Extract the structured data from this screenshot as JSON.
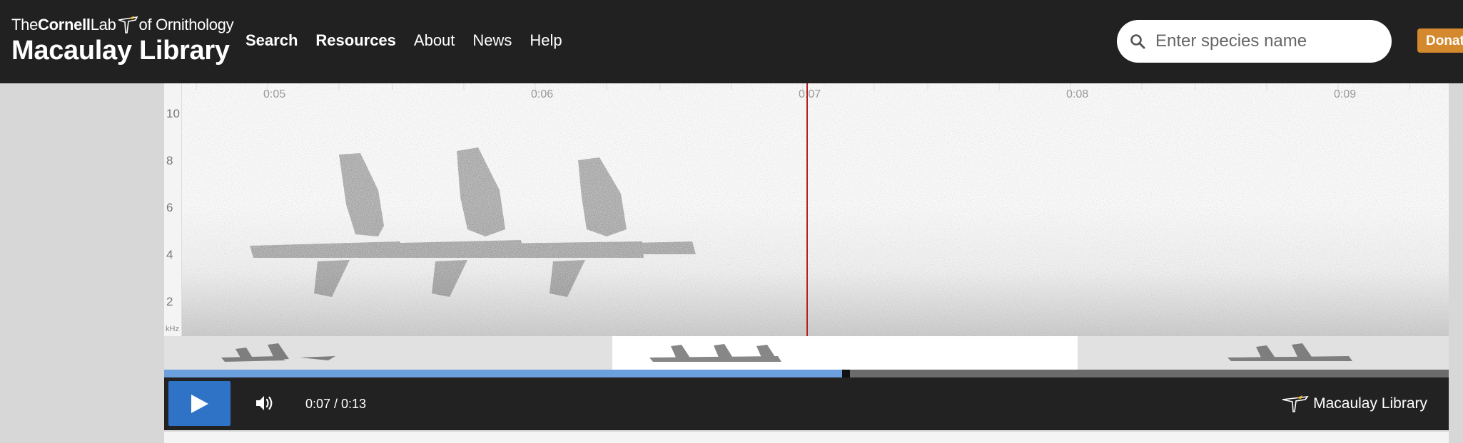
{
  "header": {
    "logo_prefix": "The",
    "logo_cornell": "Cornell",
    "logo_lab": "Lab",
    "logo_suffix": "of Ornithology",
    "logo_main": "Macaulay Library"
  },
  "nav": {
    "items": [
      {
        "label": "Search",
        "bold": true
      },
      {
        "label": "Resources",
        "bold": true
      },
      {
        "label": "About",
        "bold": false
      },
      {
        "label": "News",
        "bold": false
      },
      {
        "label": "Help",
        "bold": false
      }
    ]
  },
  "search": {
    "placeholder": "Enter species name",
    "icon": "search-icon"
  },
  "donate": {
    "label": "Donate"
  },
  "spectrogram": {
    "time_ticks": [
      "0:05",
      "0:06",
      "0:07",
      "0:08",
      "0:09"
    ],
    "freq_labels": [
      "10",
      "8",
      "6",
      "4",
      "2"
    ],
    "freq_unit": "kHz",
    "playhead_color": "#b52020"
  },
  "player": {
    "current_time": "0:07",
    "duration": "0:13",
    "time_display": "0:07 / 0:13",
    "progress_fraction": 0.528,
    "brand_label": "Macaulay Library",
    "play_icon": "play-icon",
    "volume_icon": "volume-icon"
  },
  "colors": {
    "header_bg": "#212121",
    "accent_blue": "#2f73c6",
    "progress_blue": "#6c9fde",
    "donate_orange": "#d4892e"
  }
}
